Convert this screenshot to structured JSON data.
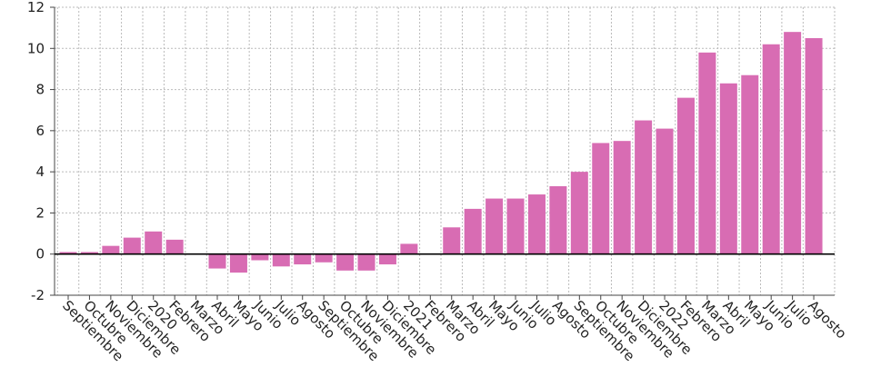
{
  "chart_data": {
    "type": "bar",
    "categories": [
      "Septiembre",
      "Octubre",
      "Noviembre",
      "Diciembre",
      "2020",
      "Febrero",
      "Marzo",
      "Abril",
      "Mayo",
      "Junio",
      "Julio",
      "Agosto",
      "Septiembre",
      "Octubre",
      "Noviembre",
      "Diciembre",
      "2021",
      "Febrero",
      "Marzo",
      "Abril",
      "Mayo",
      "Junio",
      "Julio",
      "Agosto",
      "Septiembre",
      "Octubre",
      "Noviembre",
      "Diciembre",
      "2022",
      "Febrero",
      "Marzo",
      "Abril",
      "Mayo",
      "Junio",
      "Julio",
      "Agosto"
    ],
    "values": [
      0.1,
      0.1,
      0.4,
      0.8,
      1.1,
      0.7,
      null,
      -0.7,
      -0.9,
      -0.3,
      -0.6,
      -0.5,
      -0.4,
      -0.8,
      -0.8,
      -0.5,
      0.5,
      null,
      1.3,
      2.2,
      2.7,
      2.7,
      2.9,
      3.3,
      4.0,
      5.4,
      5.5,
      6.5,
      6.1,
      7.6,
      9.8,
      8.3,
      8.7,
      10.2,
      10.8,
      10.5
    ],
    "title": "",
    "xlabel": "",
    "ylabel": "",
    "ylim": [
      -2,
      12
    ],
    "yticks": [
      "-2",
      "0",
      "2",
      "4",
      "6",
      "8",
      "10",
      "12"
    ],
    "grid": true,
    "bar_color": "#d86cb3",
    "bar_edge_color": "#ffffff",
    "zero_line_color": "#000000",
    "grid_color": "#bbbbbb"
  }
}
